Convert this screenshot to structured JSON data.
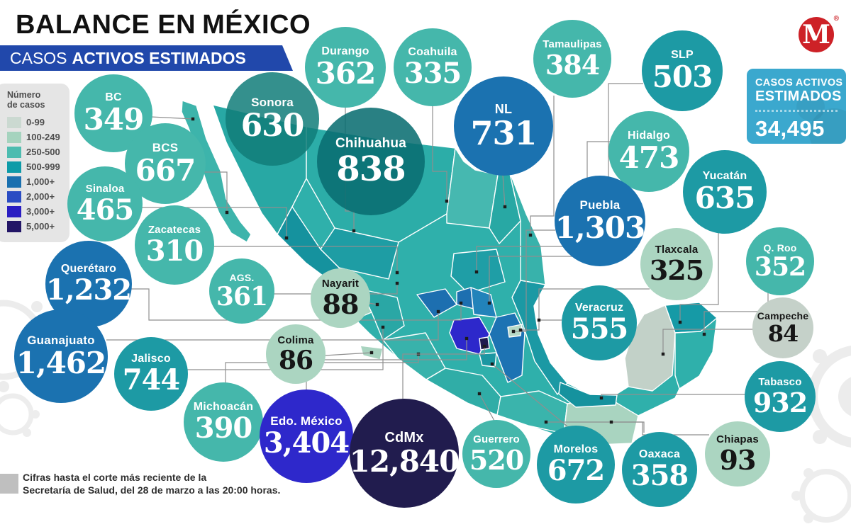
{
  "meta": {
    "brand_letter": "M",
    "registered": "®",
    "brand_color": "#cd2127"
  },
  "header": {
    "title_prefix": "BALANCE EN",
    "title_bold": "MÉXICO",
    "banner_normal": "CASOS",
    "banner_bold": "ACTIVOS ESTIMADOS",
    "banner_color": "#2148ab"
  },
  "legend": {
    "title_line1": "Número",
    "title_line2": "de casos",
    "items": [
      {
        "label": "0-99",
        "color": "#cbd9d1"
      },
      {
        "label": "100-249",
        "color": "#a5d3be"
      },
      {
        "label": "250-500",
        "color": "#4dbcb0"
      },
      {
        "label": "500-999",
        "color": "#0d9ba8"
      },
      {
        "label": "1,000+",
        "color": "#1a70af"
      },
      {
        "label": "2,000+",
        "color": "#2a4cc3"
      },
      {
        "label": "3,000+",
        "color": "#2a1dc2"
      },
      {
        "label": "5,000+",
        "color": "#221566"
      }
    ]
  },
  "total_box": {
    "line1": "CASOS ACTIVOS",
    "line2": "ESTIMADOS",
    "value": "34,495",
    "bg_color": "#3ba8ce"
  },
  "footnote": {
    "line1": "Cifras hasta el corte más reciente de la",
    "line2": "Secretaría de Salud, del 28 de marzo a las 20:00 horas."
  },
  "chart_data": {
    "type": "choropleth_map",
    "title": "CASOS ACTIVOS ESTIMADOS",
    "region": "México",
    "total": 34495,
    "legend_bins": [
      "0-99",
      "100-249",
      "250-500",
      "500-999",
      "1,000+",
      "2,000+",
      "3,000+",
      "5,000+"
    ],
    "states": [
      {
        "id": "bc",
        "label": "BC",
        "value": 349,
        "display": "349",
        "color": "#45b7ab",
        "text_color": "#ffffff"
      },
      {
        "id": "sonora",
        "label": "Sonora",
        "value": 630,
        "display": "630",
        "color": "rgba(16,124,121,0.85)",
        "text_color": "#ffffff"
      },
      {
        "id": "durango",
        "label": "Durango",
        "value": 362,
        "display": "362",
        "color": "#45b7ab",
        "text_color": "#ffffff"
      },
      {
        "id": "coahuila",
        "label": "Coahuila",
        "value": 335,
        "display": "335",
        "color": "#45b7ab",
        "text_color": "#ffffff"
      },
      {
        "id": "tamaulipas",
        "label": "Tamaulipas",
        "value": 384,
        "display": "384",
        "color": "#45b7ab",
        "text_color": "#ffffff"
      },
      {
        "id": "slp",
        "label": "SLP",
        "value": 503,
        "display": "503",
        "color": "#1d9aa4",
        "text_color": "#ffffff"
      },
      {
        "id": "nl",
        "label": "NL",
        "value": 731,
        "display": "731",
        "color": "#1b72b0",
        "text_color": "#ffffff"
      },
      {
        "id": "bcs",
        "label": "BCS",
        "value": 667,
        "display": "667",
        "color": "#45b7ab",
        "text_color": "#ffffff"
      },
      {
        "id": "chihuahua",
        "label": "Chihuahua",
        "value": 838,
        "display": "838",
        "color": "rgba(9,109,112,0.87)",
        "text_color": "#ffffff"
      },
      {
        "id": "hidalgo",
        "label": "Hidalgo",
        "value": 473,
        "display": "473",
        "color": "#45b7ab",
        "text_color": "#ffffff"
      },
      {
        "id": "sinaloa",
        "label": "Sinaloa",
        "value": 465,
        "display": "465",
        "color": "#45b7ab",
        "text_color": "#ffffff"
      },
      {
        "id": "yucatan",
        "label": "Yucatán",
        "value": 635,
        "display": "635",
        "color": "#1d9aa4",
        "text_color": "#ffffff"
      },
      {
        "id": "zacatecas",
        "label": "Zacatecas",
        "value": 310,
        "display": "310",
        "color": "#45b7ab",
        "text_color": "#ffffff"
      },
      {
        "id": "puebla",
        "label": "Puebla",
        "value": 1303,
        "display": "1,303",
        "color": "#1b72b0",
        "text_color": "#ffffff"
      },
      {
        "id": "tlaxcala",
        "label": "Tlaxcala",
        "value": 325,
        "display": "325",
        "color": "#abd5c1",
        "text_color": "#161616"
      },
      {
        "id": "qroo",
        "label": "Q. Roo",
        "value": 352,
        "display": "352",
        "color": "#45b7ab",
        "text_color": "#ffffff"
      },
      {
        "id": "queretaro",
        "label": "Querétaro",
        "value": 1232,
        "display": "1,232",
        "color": "#1b72b0",
        "text_color": "#ffffff"
      },
      {
        "id": "ags",
        "label": "AGS.",
        "value": 361,
        "display": "361",
        "color": "#45b7ab",
        "text_color": "#ffffff"
      },
      {
        "id": "nayarit",
        "label": "Nayarit",
        "value": 88,
        "display": "88",
        "color": "#abd5c1",
        "text_color": "#161616"
      },
      {
        "id": "veracruz",
        "label": "Veracruz",
        "value": 555,
        "display": "555",
        "color": "#1d9aa4",
        "text_color": "#ffffff"
      },
      {
        "id": "campeche",
        "label": "Campeche",
        "value": 84,
        "display": "84",
        "color": "#c5d1c9",
        "text_color": "#161616"
      },
      {
        "id": "guanajuato",
        "label": "Guanajuato",
        "value": 1462,
        "display": "1,462",
        "color": "#1b72b0",
        "text_color": "#ffffff"
      },
      {
        "id": "jalisco",
        "label": "Jalisco",
        "value": 744,
        "display": "744",
        "color": "#1d9aa4",
        "text_color": "#ffffff"
      },
      {
        "id": "colima",
        "label": "Colima",
        "value": 86,
        "display": "86",
        "color": "#abd5c1",
        "text_color": "#161616"
      },
      {
        "id": "tabasco",
        "label": "Tabasco",
        "value": 932,
        "display": "932",
        "color": "#1d9aa4",
        "text_color": "#ffffff"
      },
      {
        "id": "michoacan",
        "label": "Michoacán",
        "value": 390,
        "display": "390",
        "color": "#45b7ab",
        "text_color": "#ffffff"
      },
      {
        "id": "edomex",
        "label": "Edo. México",
        "value": 3404,
        "display": "3,404",
        "color": "#2e28cb",
        "text_color": "#ffffff"
      },
      {
        "id": "cdmx",
        "label": "CdMx",
        "value": 12840,
        "display": "12,840",
        "color": "#211c4e",
        "text_color": "#ffffff"
      },
      {
        "id": "guerrero",
        "label": "Guerrero",
        "value": 520,
        "display": "520",
        "color": "#45b7ab",
        "text_color": "#ffffff"
      },
      {
        "id": "morelos",
        "label": "Morelos",
        "value": 672,
        "display": "672",
        "color": "#1d9aa4",
        "text_color": "#ffffff"
      },
      {
        "id": "oaxaca",
        "label": "Oaxaca",
        "value": 358,
        "display": "358",
        "color": "#1d9aa4",
        "text_color": "#ffffff"
      },
      {
        "id": "chiapas",
        "label": "Chiapas",
        "value": 93,
        "display": "93",
        "color": "#abd5c1",
        "text_color": "#161616"
      }
    ]
  }
}
